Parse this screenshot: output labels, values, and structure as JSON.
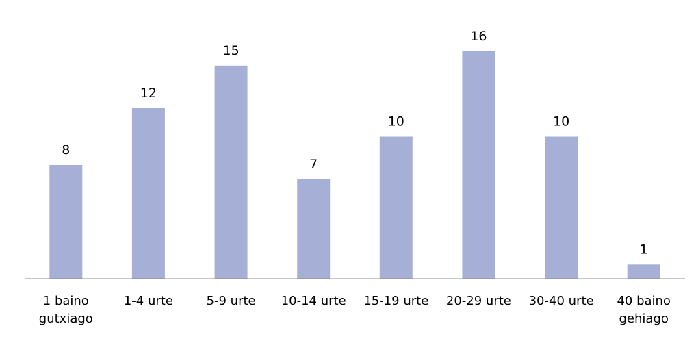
{
  "chart_data": {
    "type": "bar",
    "categories": [
      [
        "1 baino",
        "gutxiago"
      ],
      [
        "1-4 urte"
      ],
      [
        "5-9 urte"
      ],
      [
        "10-14 urte"
      ],
      [
        "15-19 urte"
      ],
      [
        "20-29 urte"
      ],
      [
        "30-40 urte"
      ],
      [
        "40 baino",
        "gehiago"
      ]
    ],
    "values": [
      8,
      12,
      15,
      7,
      10,
      16,
      10,
      1
    ],
    "data_labels": [
      "8",
      "12",
      "15",
      "7",
      "10",
      "16",
      "10",
      "1"
    ],
    "ylim": [
      0,
      16
    ],
    "grid": false,
    "legend": "none",
    "bar_color": "#a6b0d6",
    "axis_color": "#8c8c8c"
  }
}
